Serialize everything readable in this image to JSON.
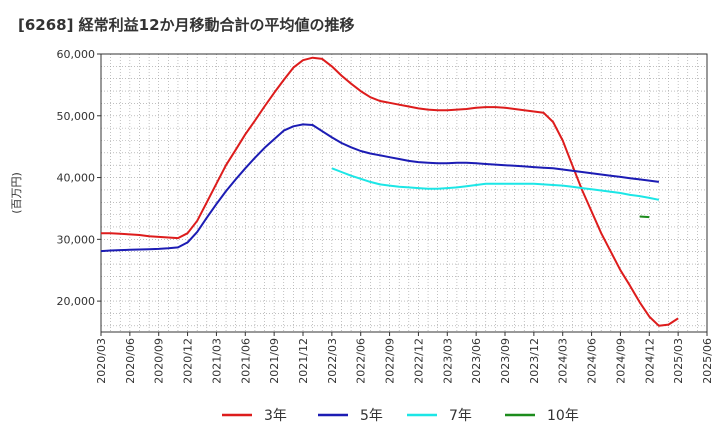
{
  "chart_data": {
    "type": "line",
    "title": "[6268]  経常利益12か月移動合計の平均値の推移",
    "ylabel": "(百万円)",
    "xlabel": "",
    "ylim": [
      15000,
      60000
    ],
    "yticks": [
      20000,
      30000,
      40000,
      50000,
      60000
    ],
    "ytick_labels": [
      "20,000",
      "30,000",
      "40,000",
      "50,000",
      "60,000"
    ],
    "xticks": [
      "2020/03",
      "2020/06",
      "2020/09",
      "2020/12",
      "2021/03",
      "2021/06",
      "2021/09",
      "2021/12",
      "2022/03",
      "2022/06",
      "2022/09",
      "2022/12",
      "2023/03",
      "2023/06",
      "2023/09",
      "2023/12",
      "2024/03",
      "2024/06",
      "2024/09",
      "2024/12",
      "2025/03",
      "2025/06"
    ],
    "grid": true,
    "legend_position": "bottom",
    "series": [
      {
        "name": "3年",
        "color": "#dd1c1c",
        "points": [
          [
            0,
            31000
          ],
          [
            1,
            31000
          ],
          [
            2,
            30900
          ],
          [
            3,
            30800
          ],
          [
            4,
            30700
          ],
          [
            5,
            30500
          ],
          [
            6,
            30400
          ],
          [
            7,
            30300
          ],
          [
            8,
            30200
          ],
          [
            9,
            31000
          ],
          [
            10,
            33000
          ],
          [
            11,
            36000
          ],
          [
            12,
            39000
          ],
          [
            13,
            42000
          ],
          [
            14,
            44500
          ],
          [
            15,
            47000
          ],
          [
            16,
            49200
          ],
          [
            17,
            51500
          ],
          [
            18,
            53700
          ],
          [
            19,
            55800
          ],
          [
            20,
            57800
          ],
          [
            21,
            59000
          ],
          [
            22,
            59400
          ],
          [
            23,
            59200
          ],
          [
            24,
            58000
          ],
          [
            25,
            56500
          ],
          [
            26,
            55200
          ],
          [
            27,
            54000
          ],
          [
            28,
            53000
          ],
          [
            29,
            52400
          ],
          [
            30,
            52100
          ],
          [
            31,
            51800
          ],
          [
            32,
            51500
          ],
          [
            33,
            51200
          ],
          [
            34,
            51000
          ],
          [
            35,
            50900
          ],
          [
            36,
            50900
          ],
          [
            37,
            51000
          ],
          [
            38,
            51100
          ],
          [
            39,
            51300
          ],
          [
            40,
            51400
          ],
          [
            41,
            51400
          ],
          [
            42,
            51300
          ],
          [
            43,
            51100
          ],
          [
            44,
            50900
          ],
          [
            45,
            50700
          ],
          [
            46,
            50500
          ],
          [
            47,
            49000
          ],
          [
            48,
            46000
          ],
          [
            49,
            42000
          ],
          [
            50,
            38000
          ],
          [
            51,
            34500
          ],
          [
            52,
            31000
          ],
          [
            53,
            28000
          ],
          [
            54,
            25000
          ],
          [
            55,
            22500
          ],
          [
            56,
            19800
          ],
          [
            57,
            17500
          ],
          [
            58,
            16000
          ],
          [
            59,
            16200
          ],
          [
            60,
            17200
          ]
        ]
      },
      {
        "name": "5年",
        "color": "#1c1cb4",
        "points": [
          [
            0,
            28100
          ],
          [
            1,
            28200
          ],
          [
            2,
            28250
          ],
          [
            3,
            28300
          ],
          [
            4,
            28350
          ],
          [
            5,
            28400
          ],
          [
            6,
            28450
          ],
          [
            7,
            28550
          ],
          [
            8,
            28700
          ],
          [
            9,
            29500
          ],
          [
            10,
            31200
          ],
          [
            11,
            33500
          ],
          [
            12,
            35700
          ],
          [
            13,
            37800
          ],
          [
            14,
            39700
          ],
          [
            15,
            41500
          ],
          [
            16,
            43200
          ],
          [
            17,
            44800
          ],
          [
            18,
            46200
          ],
          [
            19,
            47600
          ],
          [
            20,
            48300
          ],
          [
            21,
            48600
          ],
          [
            22,
            48500
          ],
          [
            23,
            47500
          ],
          [
            24,
            46500
          ],
          [
            25,
            45600
          ],
          [
            26,
            44900
          ],
          [
            27,
            44300
          ],
          [
            28,
            43900
          ],
          [
            29,
            43600
          ],
          [
            30,
            43300
          ],
          [
            31,
            43000
          ],
          [
            32,
            42700
          ],
          [
            33,
            42500
          ],
          [
            34,
            42400
          ],
          [
            35,
            42300
          ],
          [
            36,
            42300
          ],
          [
            37,
            42400
          ],
          [
            38,
            42400
          ],
          [
            39,
            42300
          ],
          [
            40,
            42200
          ],
          [
            41,
            42100
          ],
          [
            42,
            42000
          ],
          [
            43,
            41900
          ],
          [
            44,
            41800
          ],
          [
            45,
            41700
          ],
          [
            46,
            41600
          ],
          [
            47,
            41500
          ],
          [
            48,
            41300
          ],
          [
            49,
            41100
          ],
          [
            50,
            40900
          ],
          [
            51,
            40700
          ],
          [
            52,
            40500
          ],
          [
            53,
            40300
          ],
          [
            54,
            40100
          ],
          [
            55,
            39900
          ],
          [
            56,
            39700
          ],
          [
            57,
            39500
          ],
          [
            58,
            39300
          ]
        ]
      },
      {
        "name": "7年",
        "color": "#1ce6e6",
        "points": [
          [
            0,
            41500
          ],
          [
            1,
            40900
          ],
          [
            2,
            40300
          ],
          [
            3,
            39800
          ],
          [
            4,
            39300
          ],
          [
            5,
            38900
          ],
          [
            6,
            38700
          ],
          [
            7,
            38500
          ],
          [
            8,
            38400
          ],
          [
            9,
            38300
          ],
          [
            10,
            38200
          ],
          [
            11,
            38200
          ],
          [
            12,
            38300
          ],
          [
            13,
            38400
          ],
          [
            14,
            38600
          ],
          [
            15,
            38800
          ],
          [
            16,
            39000
          ],
          [
            17,
            39000
          ],
          [
            18,
            39000
          ],
          [
            19,
            39000
          ],
          [
            20,
            39000
          ],
          [
            21,
            39000
          ],
          [
            22,
            38900
          ],
          [
            23,
            38800
          ],
          [
            24,
            38700
          ],
          [
            25,
            38500
          ],
          [
            26,
            38300
          ],
          [
            27,
            38100
          ],
          [
            28,
            37900
          ],
          [
            29,
            37700
          ],
          [
            30,
            37500
          ],
          [
            31,
            37200
          ],
          [
            32,
            37000
          ],
          [
            33,
            36700
          ],
          [
            34,
            36400
          ]
        ]
      },
      {
        "name": "10年",
        "color": "#1c8c1c",
        "points": [
          [
            0,
            33700
          ],
          [
            1,
            33600
          ]
        ]
      }
    ],
    "series_start_index": [
      0,
      0,
      24,
      56
    ]
  }
}
